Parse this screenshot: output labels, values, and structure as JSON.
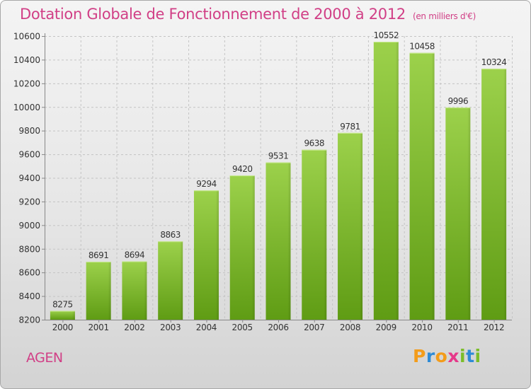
{
  "chart_data": {
    "type": "bar",
    "title": "Dotation Globale de Fonctionnement de 2000 à 2012",
    "unit_label": "(en milliers d'€)",
    "categories": [
      "2000",
      "2001",
      "2002",
      "2003",
      "2004",
      "2005",
      "2006",
      "2007",
      "2008",
      "2009",
      "2010",
      "2011",
      "2012"
    ],
    "values": [
      8275,
      8691,
      8694,
      8863,
      9294,
      9420,
      9531,
      9638,
      9781,
      10552,
      10458,
      9996,
      10324
    ],
    "yticks": [
      8200,
      8400,
      8600,
      8800,
      9000,
      9200,
      9400,
      9600,
      9800,
      10000,
      10200,
      10400,
      10600
    ],
    "ylim": [
      8200,
      10600
    ],
    "grid": true,
    "colors": {
      "bar_top": "#9cd14b",
      "bar_bottom": "#5f9c14",
      "title": "#d13f86"
    }
  },
  "footer": {
    "city": "AGEN",
    "logo": {
      "letters": [
        "P",
        "r",
        "o",
        "x",
        "i",
        "t",
        "i"
      ],
      "colors": [
        "#f39c1a",
        "#2e8bd6",
        "#f39c1a",
        "#e6398a",
        "#7bbd2a",
        "#2e8bd6",
        "#7bbd2a"
      ]
    }
  }
}
